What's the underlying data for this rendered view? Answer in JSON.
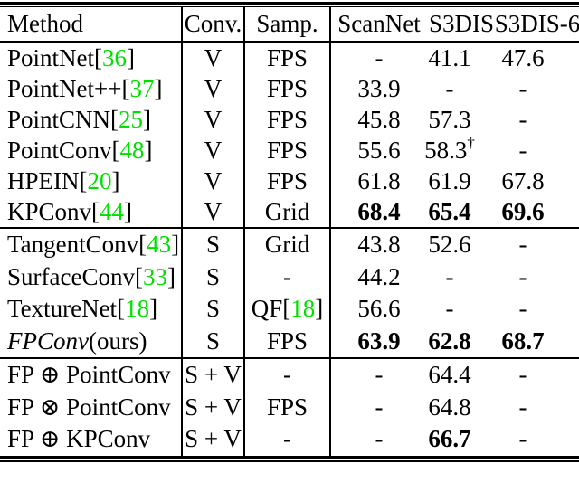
{
  "sym": {
    "lb": "[",
    "rb": "]",
    "dagger": "†"
  },
  "colors": {
    "citation_green": "#00e000",
    "rule_black": "#000000"
  },
  "header": {
    "method": "Method",
    "conv": "Conv.",
    "samp": "Samp.",
    "scannet": "ScanNet",
    "s3dis": "S3DIS",
    "s3dis6": "S3DIS-6"
  },
  "rows": [
    {
      "name": "PointNet ",
      "cite": "36",
      "conv": "V",
      "samp": "FPS",
      "v0": "-",
      "v1": "41.1",
      "v2": "47.6"
    },
    {
      "name": "PointNet++ ",
      "cite": "37",
      "conv": "V",
      "samp": "FPS",
      "v0": "33.9",
      "v1": "-",
      "v2": "-"
    },
    {
      "name": "PointCNN ",
      "cite": "25",
      "conv": "V",
      "samp": "FPS",
      "v0": "45.8",
      "v1": "57.3",
      "v2": "-"
    },
    {
      "name": "PointConv ",
      "cite": "48",
      "conv": "V",
      "samp": "FPS",
      "v0": "55.6",
      "v1": "58.3",
      "v1sup": "†",
      "v2": "-"
    },
    {
      "name": "HPEIN ",
      "cite": "20",
      "conv": "V",
      "samp": "FPS",
      "v0": "61.8",
      "v1": "61.9",
      "v2": "67.8"
    },
    {
      "name": "KPConv ",
      "cite": "44",
      "conv": "V",
      "samp": "Grid",
      "v0": "68.4",
      "v1": "65.4",
      "v2": "69.6"
    },
    {
      "name": "TangentConv ",
      "cite": "43",
      "conv": "S",
      "samp": "Grid",
      "v0": "43.8",
      "v1": "52.6",
      "v2": "-"
    },
    {
      "name": "SurfaceConv ",
      "cite": "33",
      "conv": "S",
      "samp": "-",
      "v0": "44.2",
      "v1": "-",
      "v2": "-"
    },
    {
      "name": "TextureNet ",
      "cite": "18",
      "conv": "S",
      "samp": "QF ",
      "samp_cite": "18",
      "v0": "56.6",
      "v1": "-",
      "v2": "-"
    },
    {
      "name_italic": "FPConv",
      "name_rest": " (ours)",
      "conv": "S",
      "samp": "FPS",
      "v0": "63.9",
      "v1": "62.8",
      "v2": "68.7"
    },
    {
      "name": "FP ⊕ PointConv",
      "conv": "S + V",
      "samp": "-",
      "v0": "-",
      "v1": "64.4",
      "v2": "-"
    },
    {
      "name": "FP ⊗ PointConv",
      "conv": "S + V",
      "samp": "FPS",
      "v0": "-",
      "v1": "64.8",
      "v2": "-"
    },
    {
      "name": "FP ⊕ KPConv",
      "conv": "S + V",
      "samp": "-",
      "v0": "-",
      "v1": "66.7",
      "v2": "-"
    }
  ]
}
